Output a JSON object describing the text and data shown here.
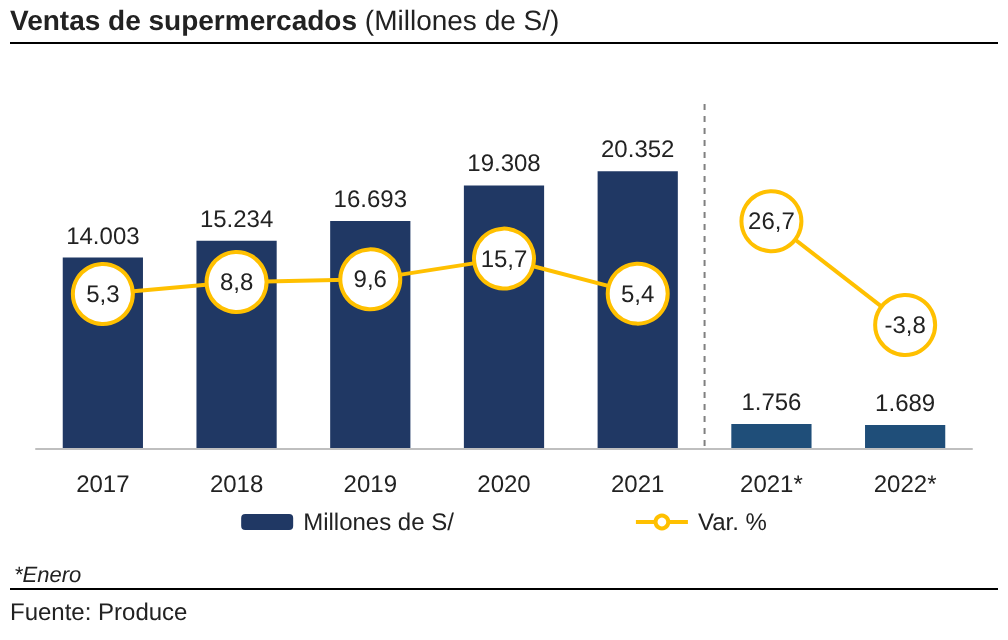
{
  "chart_data": {
    "type": "bar",
    "title": "Ventas de supermercados",
    "subtitle": "(Millones de S/)",
    "categories": [
      "2017",
      "2018",
      "2019",
      "2020",
      "2021",
      "2021*",
      "2022*"
    ],
    "series": [
      {
        "name": "Millones de S/",
        "color": "#203864",
        "colors": [
          "#203864",
          "#203864",
          "#203864",
          "#203864",
          "#203864",
          "#1f4e79",
          "#1f4e79"
        ],
        "values": [
          14003,
          15234,
          16693,
          19308,
          20352,
          1756,
          1689
        ],
        "value_labels": [
          "14.003",
          "15.234",
          "16.693",
          "19.308",
          "20.352",
          "1.756",
          "1.689"
        ]
      },
      {
        "name": "Var. %",
        "type": "line",
        "axis": "y2",
        "color": "#ffc000",
        "values": [
          5.3,
          8.8,
          9.6,
          15.7,
          5.4,
          null,
          null
        ],
        "value_labels": [
          "5,3",
          "8,8",
          "9,6",
          "15,7",
          "5,4",
          null,
          null
        ]
      },
      {
        "type": "line",
        "axis": "y2",
        "color": "#ffc000",
        "values": [
          null,
          null,
          null,
          null,
          null,
          26.7,
          -3.8
        ],
        "value_labels": [
          null,
          null,
          null,
          null,
          null,
          "26,7",
          "-3,8"
        ]
      }
    ],
    "annotations": [
      "*Enero",
      "Fuente: Produce"
    ],
    "legend": "bottom",
    "marker": "circle"
  }
}
